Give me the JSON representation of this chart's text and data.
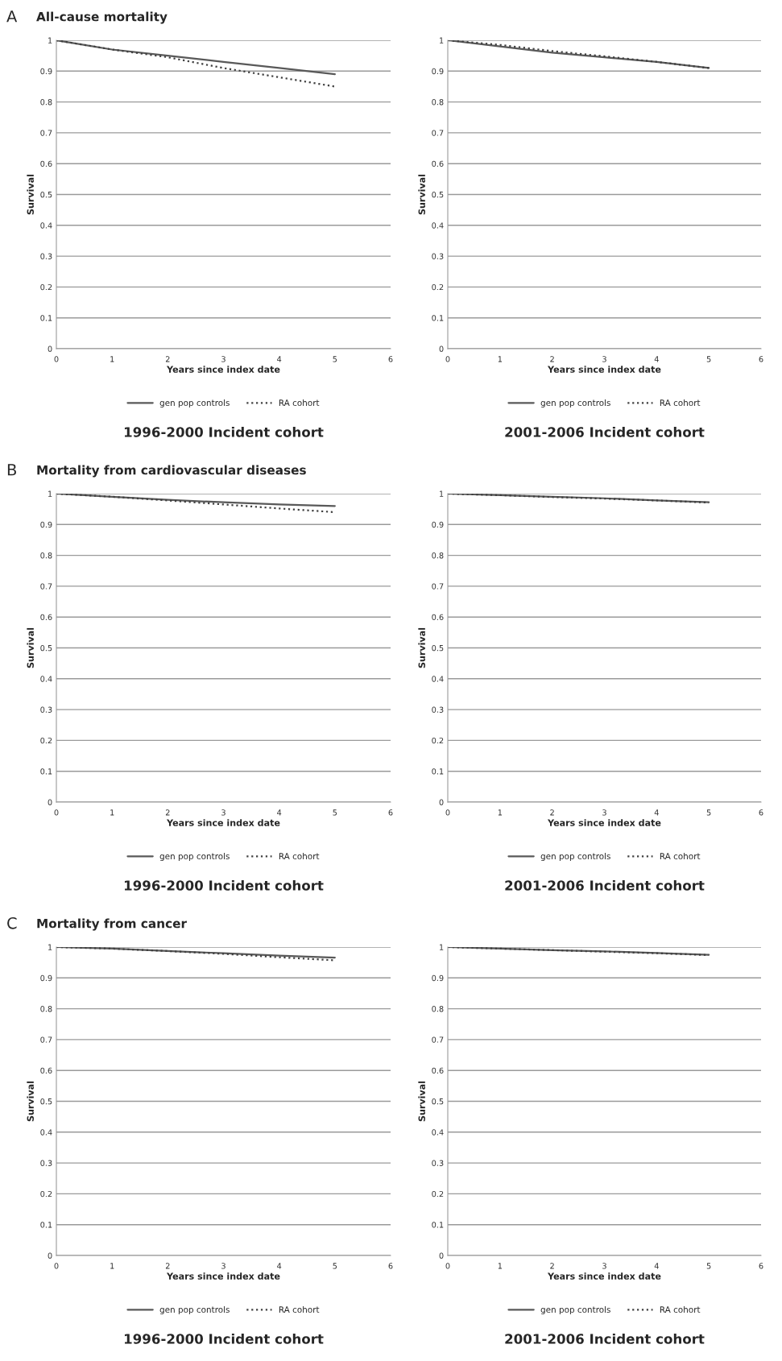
{
  "chart_data": [
    {
      "type": "line",
      "annotations": [
        "A"
      ],
      "title": "All-cause mortality",
      "subtitle": "1996-2000 Incident cohort",
      "xlabel": "Years since index date",
      "ylabel": "Survival",
      "x": [
        0,
        1,
        2,
        3,
        4,
        5
      ],
      "xlim": [
        0,
        6
      ],
      "ylim": [
        0,
        1
      ],
      "xticks": [
        0,
        1,
        2,
        3,
        4,
        5,
        6
      ],
      "yticks": [
        0,
        0.1,
        0.2,
        0.3,
        0.4,
        0.5,
        0.6,
        0.7,
        0.8,
        0.9,
        1
      ],
      "grid": "y",
      "legend": "bottom",
      "series": [
        {
          "name": "gen pop controls",
          "color": "#595959",
          "line_style": "solid",
          "values": [
            1,
            0.97,
            0.95,
            0.93,
            0.91,
            0.89
          ]
        },
        {
          "name": "RA cohort",
          "color": "#404040",
          "line_style": "dotted",
          "values": [
            1,
            0.97,
            0.945,
            0.91,
            0.88,
            0.85
          ]
        }
      ]
    },
    {
      "type": "line",
      "subtitle": "2001-2006 Incident cohort",
      "xlabel": "Years since index date",
      "ylabel": "Survival",
      "x": [
        0,
        1,
        2,
        3,
        4,
        5
      ],
      "xlim": [
        0,
        6
      ],
      "ylim": [
        0,
        1
      ],
      "xticks": [
        0,
        1,
        2,
        3,
        4,
        5,
        6
      ],
      "yticks": [
        0,
        0.1,
        0.2,
        0.3,
        0.4,
        0.5,
        0.6,
        0.7,
        0.8,
        0.9,
        1
      ],
      "grid": "y",
      "legend": "bottom",
      "series": [
        {
          "name": "gen pop controls",
          "color": "#595959",
          "line_style": "solid",
          "values": [
            1,
            0.98,
            0.96,
            0.945,
            0.93,
            0.91
          ]
        },
        {
          "name": "RA cohort",
          "color": "#404040",
          "line_style": "dotted",
          "values": [
            1,
            0.985,
            0.965,
            0.948,
            0.93,
            0.91
          ]
        }
      ]
    },
    {
      "type": "line",
      "annotations": [
        "B"
      ],
      "title": "Mortality from cardiovascular diseases",
      "subtitle": "1996-2000 Incident cohort",
      "xlabel": "Years since index date",
      "ylabel": "Survival",
      "x": [
        0,
        1,
        2,
        3,
        4,
        5
      ],
      "xlim": [
        0,
        6
      ],
      "ylim": [
        0,
        1
      ],
      "xticks": [
        0,
        1,
        2,
        3,
        4,
        5,
        6
      ],
      "yticks": [
        0,
        0.1,
        0.2,
        0.3,
        0.4,
        0.5,
        0.6,
        0.7,
        0.8,
        0.9,
        1
      ],
      "grid": "y",
      "legend": "bottom",
      "series": [
        {
          "name": "gen pop controls",
          "color": "#595959",
          "line_style": "solid",
          "values": [
            1,
            0.99,
            0.98,
            0.972,
            0.965,
            0.96
          ]
        },
        {
          "name": "RA cohort",
          "color": "#404040",
          "line_style": "dotted",
          "values": [
            1,
            0.99,
            0.978,
            0.965,
            0.952,
            0.94
          ]
        }
      ]
    },
    {
      "type": "line",
      "subtitle": "2001-2006 Incident cohort",
      "xlabel": "Years since index date",
      "ylabel": "Survival",
      "x": [
        0,
        1,
        2,
        3,
        4,
        5
      ],
      "xlim": [
        0,
        6
      ],
      "ylim": [
        0,
        1
      ],
      "xticks": [
        0,
        1,
        2,
        3,
        4,
        5,
        6
      ],
      "yticks": [
        0,
        0.1,
        0.2,
        0.3,
        0.4,
        0.5,
        0.6,
        0.7,
        0.8,
        0.9,
        1
      ],
      "grid": "y",
      "legend": "bottom",
      "series": [
        {
          "name": "gen pop controls",
          "color": "#595959",
          "line_style": "solid",
          "values": [
            1,
            0.995,
            0.99,
            0.985,
            0.978,
            0.972
          ]
        },
        {
          "name": "RA cohort",
          "color": "#404040",
          "line_style": "dotted",
          "values": [
            1,
            0.995,
            0.989,
            0.984,
            0.978,
            0.971
          ]
        }
      ]
    },
    {
      "type": "line",
      "annotations": [
        "C"
      ],
      "title": "Mortality from cancer",
      "subtitle": "1996-2000 Incident cohort",
      "xlabel": "Years since index date",
      "ylabel": "Survival",
      "x": [
        0,
        1,
        2,
        3,
        4,
        5
      ],
      "xlim": [
        0,
        6
      ],
      "ylim": [
        0,
        1
      ],
      "xticks": [
        0,
        1,
        2,
        3,
        4,
        5,
        6
      ],
      "yticks": [
        0,
        0.1,
        0.2,
        0.3,
        0.4,
        0.5,
        0.6,
        0.7,
        0.8,
        0.9,
        1
      ],
      "grid": "y",
      "legend": "bottom",
      "series": [
        {
          "name": "gen pop controls",
          "color": "#595959",
          "line_style": "solid",
          "values": [
            1,
            0.995,
            0.987,
            0.98,
            0.972,
            0.966
          ]
        },
        {
          "name": "RA cohort",
          "color": "#404040",
          "line_style": "dotted",
          "values": [
            1,
            0.995,
            0.987,
            0.978,
            0.967,
            0.957
          ]
        }
      ]
    },
    {
      "type": "line",
      "subtitle": "2001-2006 Incident cohort",
      "xlabel": "Years since index date",
      "ylabel": "Survival",
      "x": [
        0,
        1,
        2,
        3,
        4,
        5
      ],
      "xlim": [
        0,
        6
      ],
      "ylim": [
        0,
        1
      ],
      "xticks": [
        0,
        1,
        2,
        3,
        4,
        5,
        6
      ],
      "yticks": [
        0,
        0.1,
        0.2,
        0.3,
        0.4,
        0.5,
        0.6,
        0.7,
        0.8,
        0.9,
        1
      ],
      "grid": "y",
      "legend": "bottom",
      "series": [
        {
          "name": "gen pop controls",
          "color": "#595959",
          "line_style": "solid",
          "values": [
            1,
            0.995,
            0.99,
            0.986,
            0.981,
            0.975
          ]
        },
        {
          "name": "RA cohort",
          "color": "#404040",
          "line_style": "dotted",
          "values": [
            1,
            0.995,
            0.99,
            0.985,
            0.98,
            0.974
          ]
        }
      ]
    }
  ]
}
